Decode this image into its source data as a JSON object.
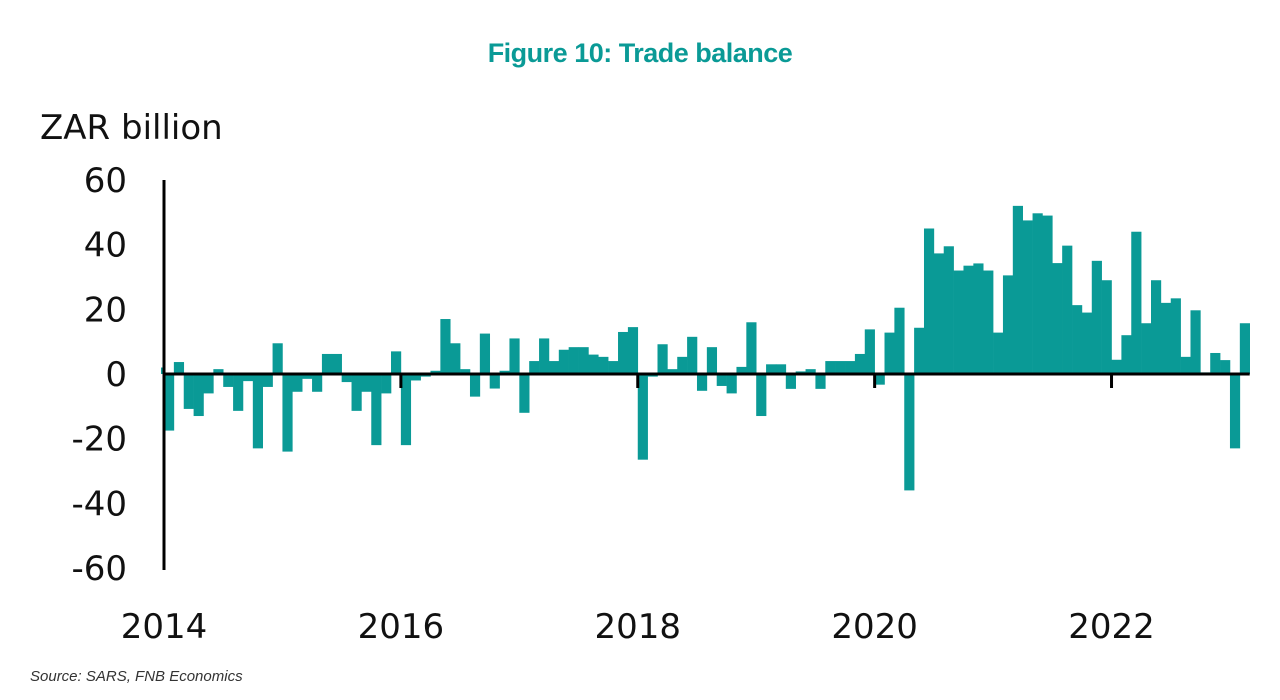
{
  "chart_data": {
    "type": "bar",
    "title": "Figure 10: Trade balance",
    "ylabel": "ZAR billion",
    "xlabel": "",
    "ylim": [
      -60,
      60
    ],
    "yticks": [
      60,
      40,
      20,
      0,
      -20,
      -40,
      -60
    ],
    "xticks": [
      "2014",
      "2016",
      "2018",
      "2020",
      "2022"
    ],
    "grid": false,
    "legend": "none",
    "bar_color": "#0a9a96",
    "start": "2013-12",
    "frequency": "monthly",
    "values": [
      2,
      -17.5,
      3.7,
      -10.8,
      -13,
      -6,
      1.5,
      -4,
      -11.4,
      -2.2,
      -23,
      -4,
      9.5,
      -24,
      -5.5,
      -1.5,
      -5.5,
      6.2,
      6.2,
      -2.5,
      -11.4,
      -5.5,
      -22,
      -6,
      7,
      -22,
      -2,
      -0.8,
      1,
      17,
      9.5,
      1.5,
      -7,
      12.5,
      -4.5,
      1,
      11,
      -12,
      4,
      11,
      4,
      7.5,
      8.3,
      8.3,
      6,
      5.3,
      4,
      13,
      14.5,
      -26.5,
      -0.8,
      9.2,
      1.5,
      5.3,
      11.5,
      -5.2,
      8.3,
      -3.7,
      -6,
      2.2,
      16,
      -13,
      3,
      3,
      -4.6,
      0.8,
      1.5,
      -4.6,
      4,
      4,
      4,
      6.2,
      13.8,
      -3.3,
      12.8,
      20.5,
      -36,
      14.3,
      45,
      37.3,
      39.5,
      32,
      33.5,
      34.2,
      32,
      12.8,
      30.5,
      52,
      47.5,
      49.7,
      49,
      34.3,
      39.7,
      21.3,
      19,
      35,
      29,
      4.4,
      12,
      44,
      15.7,
      29,
      22,
      23.4,
      5.3,
      19.7,
      0.5,
      6.5,
      4.3,
      -23,
      15.7
    ]
  },
  "header": {
    "title": "Figure 10: Trade balance"
  },
  "axis": {
    "ylabel": "ZAR billion"
  },
  "footer": {
    "source": "Source: SARS, FNB Economics"
  }
}
